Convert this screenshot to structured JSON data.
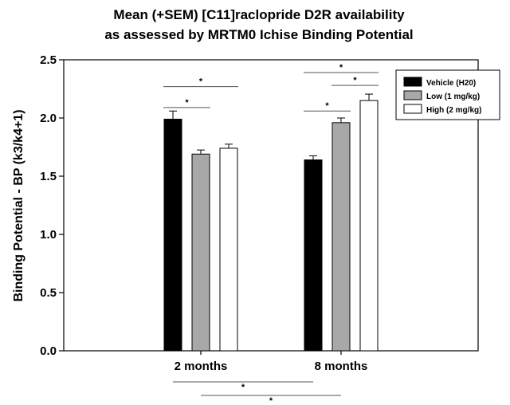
{
  "chart_data": {
    "type": "bar",
    "title": [
      "Mean (+SEM) [C11]raclopride D2R availability",
      "as assessed by MRTM0 Ichise Binding Potential"
    ],
    "xlabel": "",
    "ylabel": "Binding Potential - BP (k3/k4+1)",
    "ylim": [
      0,
      2.5
    ],
    "yticks": [
      "0.0",
      "0.5",
      "1.0",
      "1.5",
      "2.0",
      "2.5"
    ],
    "categories": [
      "2 months",
      "8 months"
    ],
    "series": [
      {
        "name": "Vehicle (H20)",
        "values": [
          1.99,
          1.64
        ],
        "sem": [
          0.07,
          0.035
        ],
        "color": "#000000"
      },
      {
        "name": "Low (1 mg/kg)",
        "values": [
          1.69,
          1.96
        ],
        "sem": [
          0.035,
          0.04
        ],
        "color": "#a8a8a8"
      },
      {
        "name": "High (2 mg/kg)",
        "values": [
          1.74,
          2.15
        ],
        "sem": [
          0.035,
          0.055
        ],
        "color": "#ffffff"
      }
    ],
    "legend_position": "top-right",
    "significance": [
      {
        "category": "2 months",
        "from": "Vehicle (H20)",
        "to": "Low (1 mg/kg)",
        "label": "*",
        "level": 2.09
      },
      {
        "category": "2 months",
        "from": "Vehicle (H20)",
        "to": "High (2 mg/kg)",
        "label": "*",
        "level": 2.27
      },
      {
        "category": "8 months",
        "from": "Vehicle (H20)",
        "to": "Low (1 mg/kg)",
        "label": "*",
        "level": 2.06
      },
      {
        "category": "8 months",
        "from": "Low (1 mg/kg)",
        "to": "High (2 mg/kg)",
        "label": "*",
        "level": 2.28
      },
      {
        "category": "8 months",
        "from": "Vehicle (H20)",
        "to": "High (2 mg/kg)",
        "label": "*",
        "level": 2.39
      }
    ],
    "cross_significance": [
      {
        "from": [
          "2 months",
          "Vehicle (H20)"
        ],
        "to": [
          "8 months",
          "Vehicle (H20)"
        ],
        "label": "*"
      },
      {
        "from": [
          "2 months",
          "Low (1 mg/kg)"
        ],
        "to": [
          "8 months",
          "Low (1 mg/kg)"
        ],
        "label": "*"
      },
      {
        "from": [
          "2 months",
          "High (2 mg/kg)"
        ],
        "to": [
          "8 months",
          "High (2 mg/kg)"
        ],
        "label": "*"
      }
    ]
  }
}
